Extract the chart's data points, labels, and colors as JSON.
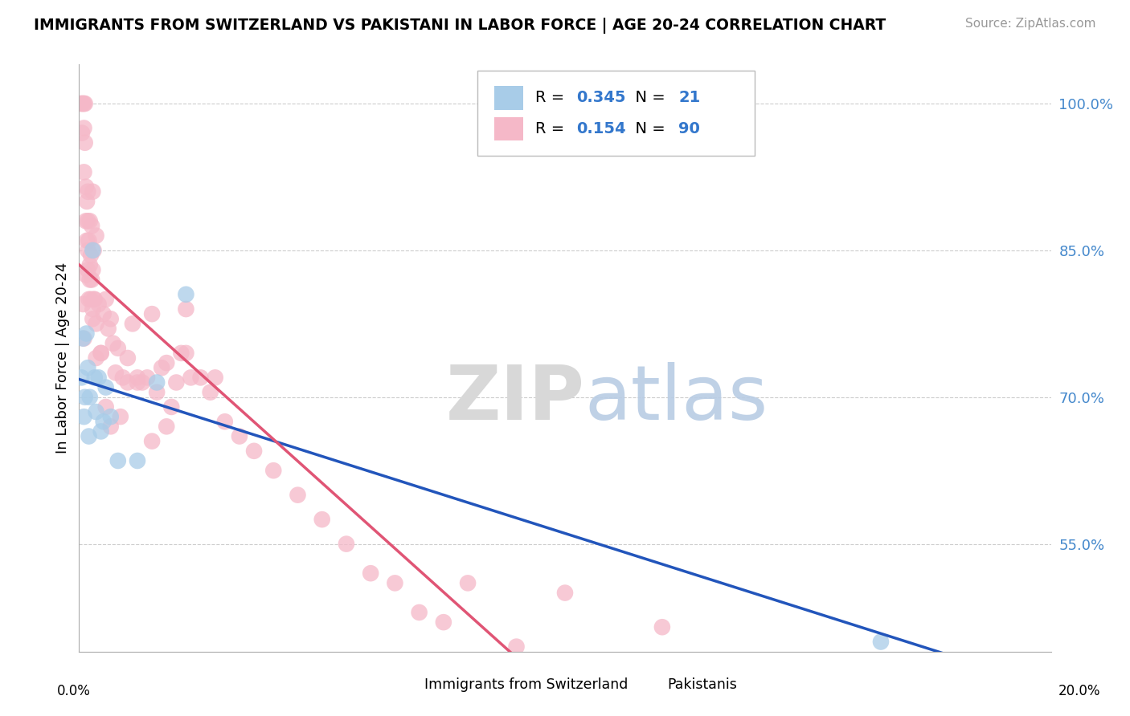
{
  "title": "IMMIGRANTS FROM SWITZERLAND VS PAKISTANI IN LABOR FORCE | AGE 20-24 CORRELATION CHART",
  "source": "Source: ZipAtlas.com",
  "ylabel": "In Labor Force | Age 20-24",
  "y_ticks": [
    55.0,
    70.0,
    85.0,
    100.0
  ],
  "xmin": 0.0,
  "xmax": 20.0,
  "ymin": 44.0,
  "ymax": 104.0,
  "r_swiss": 0.345,
  "n_swiss": 21,
  "r_pak": 0.154,
  "n_pak": 90,
  "color_swiss": "#a8cce8",
  "color_pak": "#f5b8c8",
  "color_swiss_line": "#2255bb",
  "color_pak_line": "#e05575",
  "legend_label_swiss": "Immigrants from Switzerland",
  "legend_label_pak": "Pakistanis",
  "watermark_zip": "ZIP",
  "watermark_atlas": "atlas",
  "swiss_x": [
    0.05,
    0.08,
    0.1,
    0.12,
    0.15,
    0.18,
    0.2,
    0.22,
    0.28,
    0.32,
    0.35,
    0.4,
    0.45,
    0.5,
    0.55,
    0.65,
    0.8,
    1.2,
    1.6,
    2.2,
    16.5
  ],
  "swiss_y": [
    72.0,
    76.0,
    68.0,
    70.0,
    76.5,
    73.0,
    66.0,
    70.0,
    85.0,
    72.0,
    68.5,
    72.0,
    66.5,
    67.5,
    71.0,
    68.0,
    63.5,
    63.5,
    71.5,
    80.5,
    45.0
  ],
  "pak_x": [
    0.04,
    0.06,
    0.06,
    0.08,
    0.1,
    0.1,
    0.1,
    0.12,
    0.12,
    0.14,
    0.14,
    0.16,
    0.16,
    0.18,
    0.18,
    0.18,
    0.2,
    0.2,
    0.22,
    0.22,
    0.24,
    0.24,
    0.26,
    0.26,
    0.28,
    0.28,
    0.28,
    0.3,
    0.3,
    0.32,
    0.35,
    0.35,
    0.4,
    0.45,
    0.5,
    0.55,
    0.6,
    0.65,
    0.7,
    0.8,
    0.9,
    1.0,
    1.1,
    1.2,
    1.3,
    1.4,
    1.5,
    1.6,
    1.7,
    1.8,
    1.9,
    2.0,
    2.1,
    2.2,
    2.3,
    2.5,
    2.7,
    3.0,
    3.3,
    3.6,
    4.0,
    4.5,
    5.0,
    5.5,
    6.0,
    6.5,
    7.0,
    7.5,
    8.0,
    9.0,
    10.0,
    12.0,
    0.08,
    0.1,
    0.14,
    0.18,
    0.22,
    0.28,
    0.35,
    0.45,
    0.55,
    0.65,
    0.75,
    0.85,
    1.0,
    1.2,
    1.5,
    1.8,
    2.2,
    2.8
  ],
  "pak_y": [
    100.0,
    97.0,
    100.0,
    100.0,
    100.0,
    97.5,
    93.0,
    100.0,
    96.0,
    88.0,
    91.5,
    86.0,
    90.0,
    83.0,
    88.0,
    91.0,
    80.0,
    86.0,
    83.5,
    88.0,
    80.0,
    84.5,
    87.5,
    82.0,
    78.0,
    83.0,
    91.0,
    80.0,
    85.0,
    80.0,
    86.5,
    77.5,
    79.5,
    74.5,
    78.5,
    80.0,
    77.0,
    78.0,
    75.5,
    75.0,
    72.0,
    71.5,
    77.5,
    72.0,
    71.5,
    72.0,
    78.5,
    70.5,
    73.0,
    73.5,
    69.0,
    71.5,
    74.5,
    79.0,
    72.0,
    72.0,
    70.5,
    67.5,
    66.0,
    64.5,
    62.5,
    60.0,
    57.5,
    55.0,
    52.0,
    51.0,
    48.0,
    47.0,
    51.0,
    44.5,
    50.0,
    46.5,
    79.5,
    76.0,
    82.5,
    85.0,
    82.0,
    79.0,
    74.0,
    74.5,
    69.0,
    67.0,
    72.5,
    68.0,
    74.0,
    71.5,
    65.5,
    67.0,
    74.5,
    72.0
  ]
}
